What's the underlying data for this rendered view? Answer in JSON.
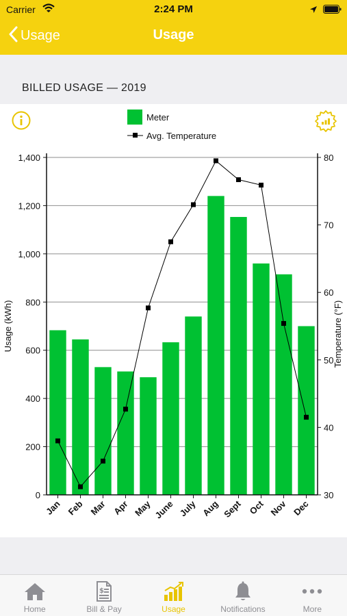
{
  "status_bar": {
    "carrier": "Carrier",
    "time": "2:24 PM"
  },
  "nav": {
    "back_label": "Usage",
    "title": "Usage"
  },
  "section": {
    "title": "BILLED USAGE — 2019"
  },
  "tabs": [
    {
      "label": "Home",
      "icon": "house-icon"
    },
    {
      "label": "Bill & Pay",
      "icon": "bill-icon"
    },
    {
      "label": "Usage",
      "icon": "bar-chart-icon",
      "active": true
    },
    {
      "label": "Notifications",
      "icon": "bell-icon"
    },
    {
      "label": "More",
      "icon": "more-dots-icon"
    }
  ],
  "colors": {
    "accent": "#f5d20f",
    "bar": "#00c132",
    "line": "#000000",
    "active_tab": "#e8c400"
  },
  "chart_data": {
    "type": "bar",
    "categories": [
      "Jan",
      "Feb",
      "Mar",
      "Apr",
      "May",
      "June",
      "July",
      "Aug",
      "Sept",
      "Oct",
      "Nov",
      "Dec"
    ],
    "series": [
      {
        "name": "Meter",
        "type": "bar",
        "axis": "left",
        "values": [
          683,
          645,
          530,
          512,
          488,
          633,
          740,
          1240,
          1153,
          960,
          915,
          700
        ]
      },
      {
        "name": "Avg. Temperature",
        "type": "line",
        "axis": "right",
        "values": [
          38,
          31.2,
          35,
          42.7,
          57.7,
          67.5,
          73,
          79.5,
          76.7,
          75.9,
          55.4,
          41.5
        ]
      }
    ],
    "ylabel": "Usage (kWh)",
    "ylabel_right": "Temperature (°F)",
    "ylim": [
      0,
      1400
    ],
    "ylim_right": [
      30,
      80
    ],
    "yticks": [
      "0",
      "200",
      "400",
      "600",
      "800",
      "1,000",
      "1,200",
      "1,400"
    ],
    "yticks_right": [
      "30",
      "40",
      "50",
      "60",
      "70",
      "80"
    ],
    "grid": true,
    "legend": "top-center"
  }
}
